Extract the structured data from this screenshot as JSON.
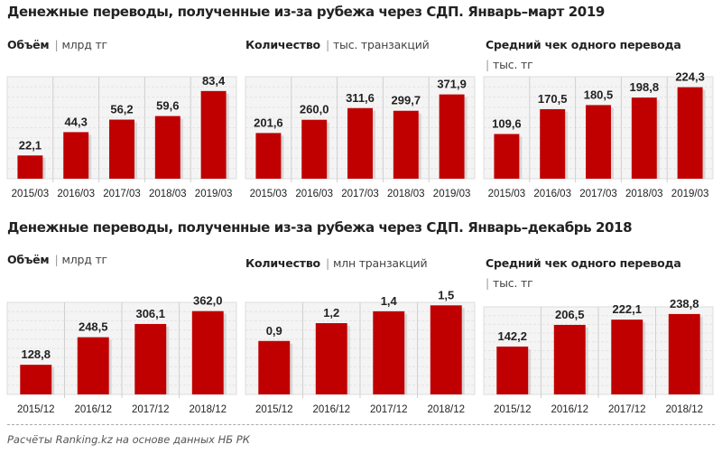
{
  "titles": [
    "Денежные переводы, полученные из-за рубежа через СДП. Январь–март 2019",
    "Денежные переводы, полученные из-за рубежа через СДП. Январь–декабрь 2018"
  ],
  "bar_color": "#c00000",
  "footnote": "Расчёты Ranking.kz на основе данных НБ РК",
  "chart_data": [
    {
      "type": "bar",
      "title": "Объём",
      "unit": "млрд тг",
      "categories": [
        "2015/03",
        "2016/03",
        "2017/03",
        "2018/03",
        "2019/03"
      ],
      "values": [
        22.1,
        44.3,
        56.2,
        59.6,
        83.4
      ],
      "labels": [
        "22,1",
        "44,3",
        "56,2",
        "59,6",
        "83,4"
      ],
      "ylim": [
        0,
        97
      ]
    },
    {
      "type": "bar",
      "title": "Количество",
      "unit": "тыс. транзакций",
      "categories": [
        "2015/03",
        "2016/03",
        "2017/03",
        "2018/03",
        "2019/03"
      ],
      "values": [
        201.6,
        260.0,
        311.6,
        299.7,
        371.9
      ],
      "labels": [
        "201,6",
        "260,0",
        "311,6",
        "299,7",
        "371,9"
      ],
      "ylim": [
        0,
        450
      ]
    },
    {
      "type": "bar",
      "title": "Средний чек одного перевода",
      "unit": "тыс. тг",
      "categories": [
        "2015/03",
        "2016/03",
        "2017/03",
        "2018/03",
        "2019/03"
      ],
      "values": [
        109.6,
        170.5,
        180.5,
        198.8,
        224.3
      ],
      "labels": [
        "109,6",
        "170,5",
        "180,5",
        "198,8",
        "224,3"
      ],
      "ylim": [
        0,
        250
      ]
    },
    {
      "type": "bar",
      "title": "Объём",
      "unit": "млрд тг",
      "categories": [
        "2015/12",
        "2016/12",
        "2017/12",
        "2018/12"
      ],
      "values": [
        128.8,
        248.5,
        306.1,
        362.0
      ],
      "labels": [
        "128,8",
        "248,5",
        "306,1",
        "362,0"
      ],
      "ylim": [
        0,
        400
      ]
    },
    {
      "type": "bar",
      "title": "Количество",
      "unit": "млн транзакций",
      "categories": [
        "2015/12",
        "2016/12",
        "2017/12",
        "2018/12"
      ],
      "values": [
        0.9,
        1.2,
        1.4,
        1.5
      ],
      "labels": [
        "0,9",
        "1,2",
        "1,4",
        "1,5"
      ],
      "ylim": [
        0,
        1.55
      ]
    },
    {
      "type": "bar",
      "title": "Средний чек одного перевода",
      "unit": "тыс. тг",
      "categories": [
        "2015/12",
        "2016/12",
        "2017/12",
        "2018/12"
      ],
      "values": [
        142.2,
        206.5,
        222.1,
        238.8
      ],
      "labels": [
        "142,2",
        "206,5",
        "222,1",
        "238,8"
      ],
      "ylim": [
        0,
        260
      ]
    }
  ]
}
